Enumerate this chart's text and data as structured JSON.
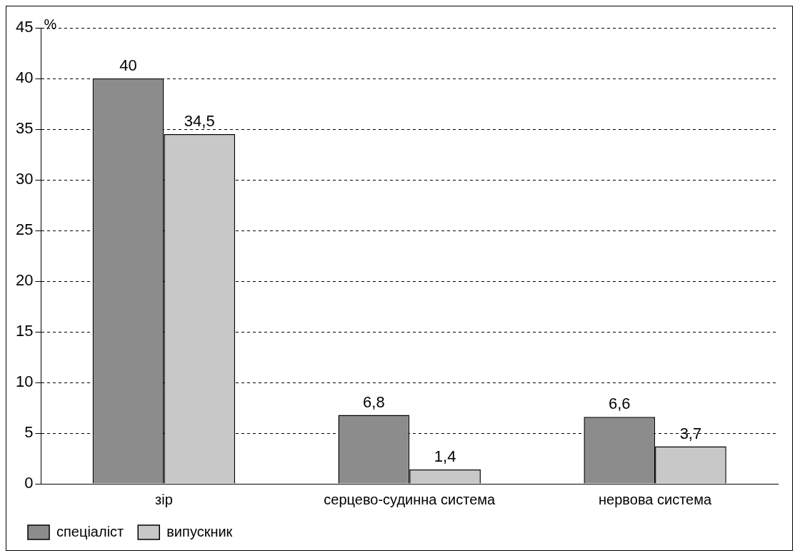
{
  "chart_data": {
    "type": "bar",
    "ylabel": "%",
    "categories": [
      "зір",
      "серцево-судинна система",
      "нервова система"
    ],
    "series": [
      {
        "name": "спеціаліст",
        "color": "#8c8c8c",
        "values": [
          40,
          6.8,
          6.6
        ],
        "value_labels": [
          "40",
          "6,8",
          "6,6"
        ]
      },
      {
        "name": "випускник",
        "color": "#c8c8c8",
        "values": [
          34.5,
          1.4,
          3.7
        ],
        "value_labels": [
          "34,5",
          "1,4",
          "3,7"
        ]
      }
    ],
    "ylim": [
      0,
      45
    ],
    "yticks": [
      0,
      5,
      10,
      15,
      20,
      25,
      30,
      35,
      40,
      45
    ],
    "grid": "y",
    "legend": "bottom left"
  }
}
